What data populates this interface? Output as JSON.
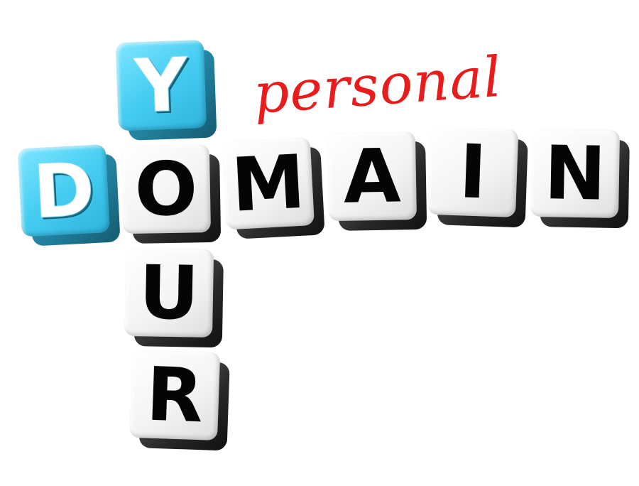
{
  "colors": {
    "accent_blue": "#45cdf2",
    "script_red": "#e81c1c",
    "letter_black": "#050505",
    "cube_white": "#f4f4f4"
  },
  "script_word": "personal",
  "cubes": {
    "y": "Y",
    "d": "D",
    "o": "O",
    "m": "M",
    "a": "A",
    "i": "I",
    "n": "N",
    "u": "U",
    "r": "R"
  }
}
